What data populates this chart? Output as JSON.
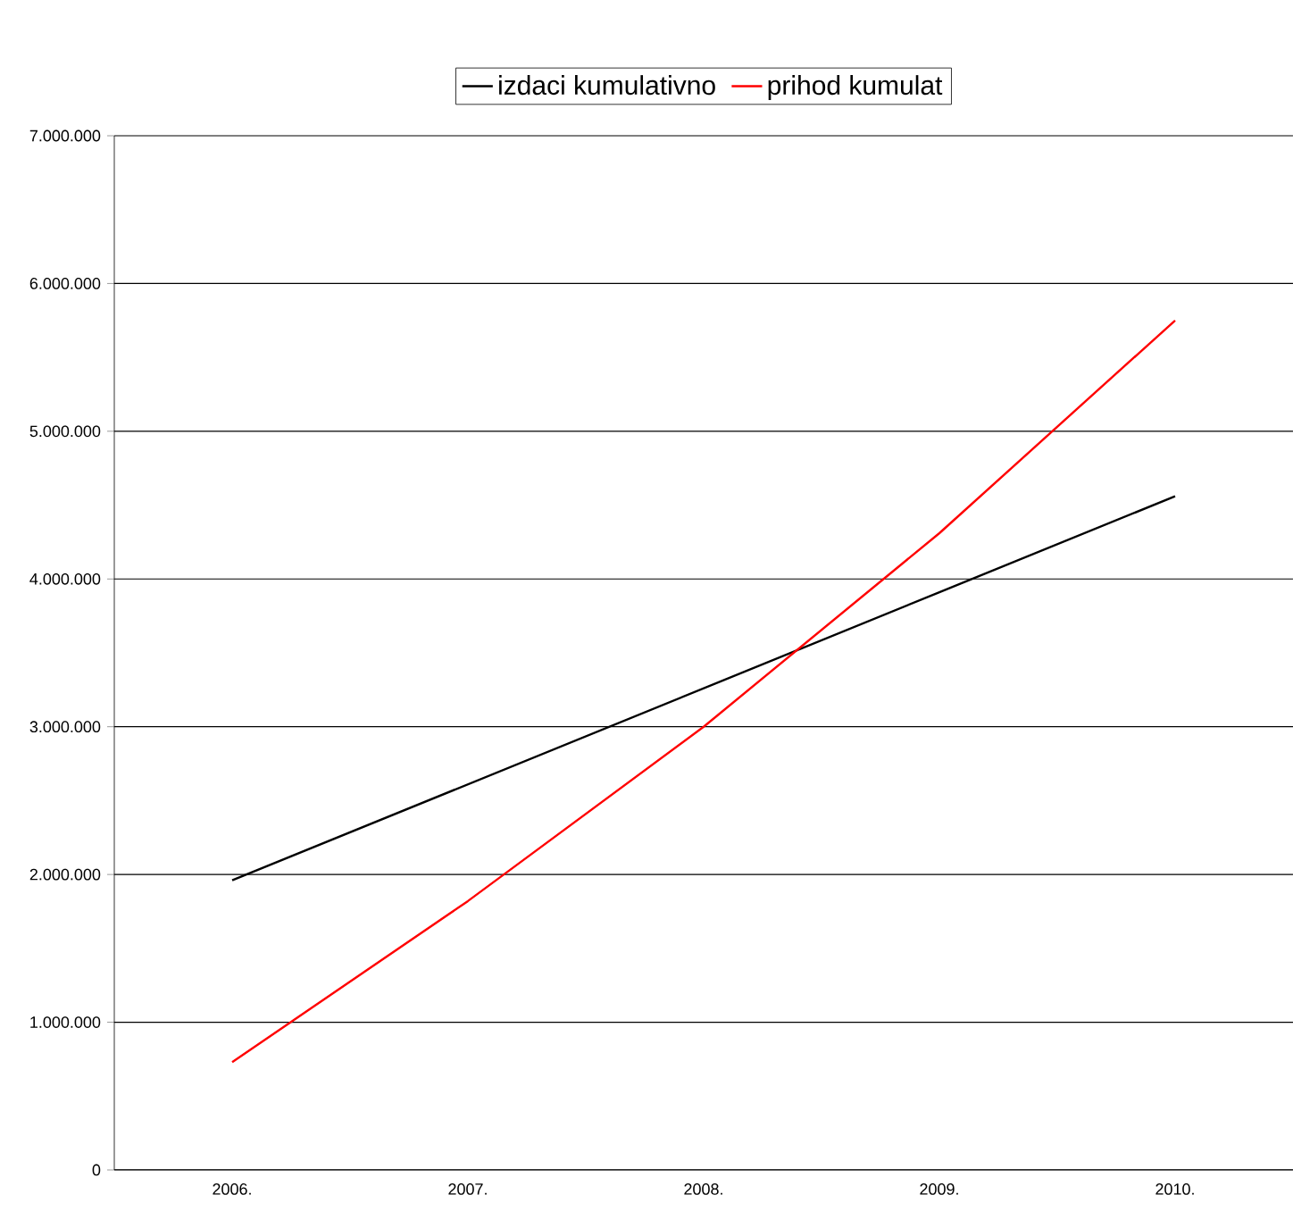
{
  "chart_data": {
    "type": "line",
    "categories": [
      "2006.",
      "2007.",
      "2008.",
      "2009.",
      "2010."
    ],
    "series": [
      {
        "name": "izdaci kumulativno",
        "color": "#000000",
        "values": [
          1960000,
          2610000,
          3260000,
          3910000,
          4560000
        ]
      },
      {
        "name": "prihod kumulat",
        "color": "#ff0000",
        "values": [
          730000,
          1820000,
          3000000,
          4310000,
          5750000
        ]
      }
    ],
    "ylim": [
      0,
      7000000
    ],
    "yticks": [
      {
        "value": 0,
        "label": "0"
      },
      {
        "value": 1000000,
        "label": "1.000.000"
      },
      {
        "value": 2000000,
        "label": "2.000.000"
      },
      {
        "value": 3000000,
        "label": "3.000.000"
      },
      {
        "value": 4000000,
        "label": "4.000.000"
      },
      {
        "value": 5000000,
        "label": "5.000.000"
      },
      {
        "value": 6000000,
        "label": "6.000.000"
      },
      {
        "value": 7000000,
        "label": "7.000.000"
      }
    ],
    "grid": "y",
    "legend": "top",
    "marker": "none",
    "line_style": "solid"
  }
}
